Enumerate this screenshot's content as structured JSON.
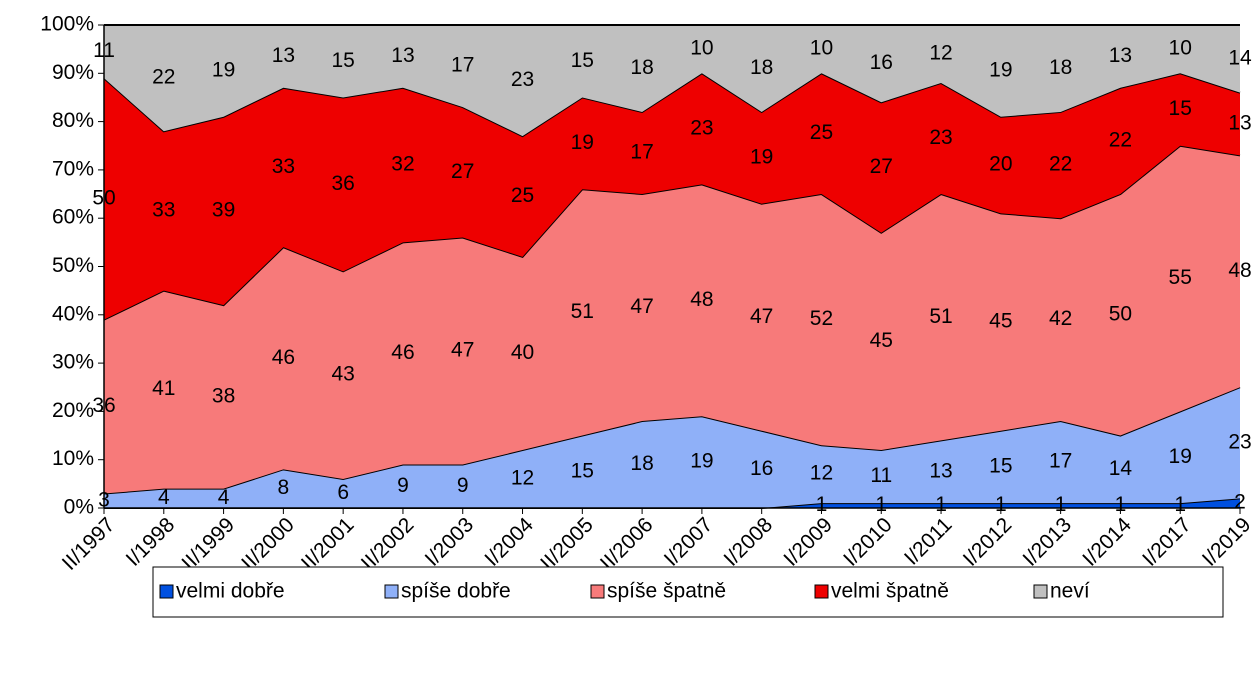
{
  "chart_data": {
    "type": "stacked_area",
    "categories": [
      "II/1997",
      "I/1998",
      "II/1999",
      "II/2000",
      "II/2001",
      "II/2002",
      "I/2003",
      "I/2004",
      "II/2005",
      "II/2006",
      "I/2007",
      "I/2008",
      "I/2009",
      "I/2010",
      "I/2011",
      "I/2012",
      "I/2013",
      "I/2014",
      "I/2017",
      "I/2019"
    ],
    "series": [
      {
        "name": "velmi dobře",
        "color": "#0050e0",
        "values": [
          0,
          0,
          0,
          0,
          0,
          0,
          0,
          0,
          0,
          0,
          0,
          0,
          1,
          1,
          1,
          1,
          1,
          1,
          1,
          2
        ]
      },
      {
        "name": "spíše dobře",
        "color": "#8fb0f8",
        "values": [
          3,
          4,
          4,
          8,
          6,
          9,
          9,
          12,
          15,
          18,
          19,
          16,
          12,
          11,
          13,
          15,
          17,
          14,
          19,
          23
        ]
      },
      {
        "name": "spíše špatně",
        "color": "#f77a7a",
        "values": [
          36,
          41,
          38,
          46,
          43,
          46,
          47,
          40,
          51,
          47,
          48,
          47,
          52,
          45,
          51,
          45,
          42,
          50,
          55,
          48
        ]
      },
      {
        "name": "velmi špatně",
        "color": "#ee0000",
        "values": [
          50,
          33,
          39,
          33,
          36,
          32,
          27,
          25,
          19,
          17,
          23,
          19,
          25,
          27,
          23,
          20,
          22,
          22,
          15,
          13
        ]
      },
      {
        "name": "neví",
        "color": "#c0c0c0",
        "values": [
          11,
          22,
          19,
          13,
          15,
          13,
          17,
          23,
          15,
          18,
          10,
          18,
          10,
          16,
          12,
          19,
          18,
          13,
          10,
          14
        ]
      }
    ],
    "ylim": [
      0,
      100
    ],
    "yticks": [
      {
        "value": 0,
        "label": "0%"
      },
      {
        "value": 10,
        "label": "10%"
      },
      {
        "value": 20,
        "label": "20%"
      },
      {
        "value": 30,
        "label": "30%"
      },
      {
        "value": 40,
        "label": "40%"
      },
      {
        "value": 50,
        "label": "50%"
      },
      {
        "value": 60,
        "label": "60%"
      },
      {
        "value": 70,
        "label": "70%"
      },
      {
        "value": 80,
        "label": "80%"
      },
      {
        "value": 90,
        "label": "90%"
      },
      {
        "value": 100,
        "label": "100%"
      }
    ],
    "legend": "bottom"
  }
}
